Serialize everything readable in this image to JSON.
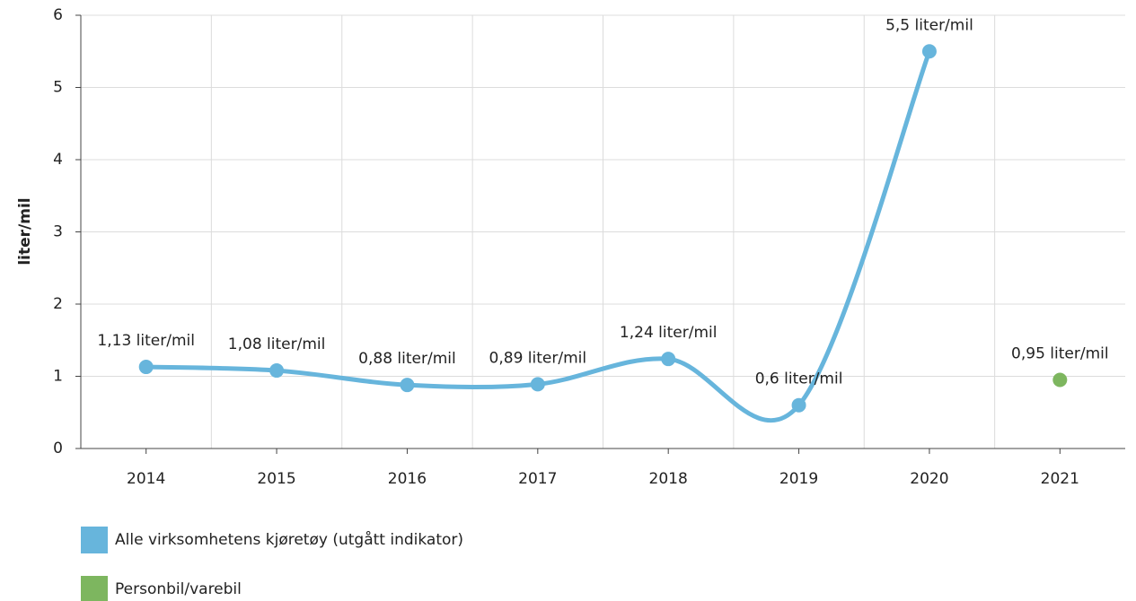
{
  "chart_data": {
    "type": "line",
    "y_label": "liter/mil",
    "categories": [
      "2014",
      "2015",
      "2016",
      "2017",
      "2018",
      "2019",
      "2020",
      "2021"
    ],
    "series": [
      {
        "name": "Alle virksomhetens kjøretøy (utgått indikator)",
        "color": "#67b5dc",
        "values": [
          1.13,
          1.08,
          0.88,
          0.89,
          1.24,
          0.6,
          5.5,
          null
        ],
        "value_labels": [
          "1,13 liter/mil",
          "1,08 liter/mil",
          "0,88 liter/mil",
          "0,89 liter/mil",
          "1,24 liter/mil",
          "0,6 liter/mil",
          "5,5 liter/mil",
          null
        ]
      },
      {
        "name": "Personbil/varebil",
        "color": "#7db65f",
        "values": [
          null,
          null,
          null,
          null,
          null,
          null,
          null,
          0.95
        ],
        "value_labels": [
          null,
          null,
          null,
          null,
          null,
          null,
          null,
          "0,95 liter/mil"
        ]
      }
    ],
    "ylim": [
      0,
      6
    ],
    "yticks": [
      0,
      1,
      2,
      3,
      4,
      5,
      6
    ],
    "grid": true
  }
}
